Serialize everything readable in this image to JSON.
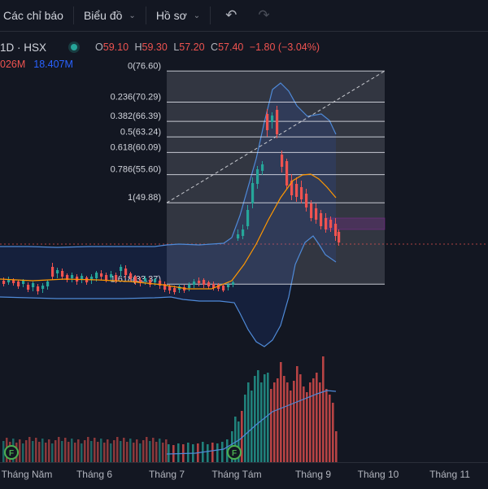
{
  "toolbar": {
    "indicators_label": "Các chỉ báo",
    "chart_label": "Biểu đồ",
    "profile_label": "Hồ sơ",
    "undo_icon": "undo-icon",
    "redo_icon": "redo-icon"
  },
  "legend": {
    "symbol": "1D · HSX",
    "open_key": "O",
    "open": "59.10",
    "high_key": "H",
    "high": "59.30",
    "low_key": "L",
    "low": "57.20",
    "close_key": "C",
    "close": "57.40",
    "change": "−1.80 (−3.04%)",
    "volume_a": "026M",
    "volume_b": "18.407M"
  },
  "colors": {
    "up": "#26a69a",
    "down": "#ef5350",
    "bollinger": "#2962ff",
    "ma": "#ff9800",
    "fib_zone": "#8a8f9c"
  },
  "fib_levels": [
    {
      "label": "0(76.60)",
      "price": 76.6
    },
    {
      "label": "0.236(70.29)",
      "price": 70.29
    },
    {
      "label": "0.382(66.39)",
      "price": 66.39
    },
    {
      "label": "0.5(63.24)",
      "price": 63.24
    },
    {
      "label": "0.618(60.09)",
      "price": 60.09
    },
    {
      "label": "0.786(55.60)",
      "price": 55.6
    },
    {
      "label": "1(49.88)",
      "price": 49.88
    },
    {
      "label": "1.618(33.37)",
      "price": 33.37
    }
  ],
  "xaxis": {
    "labels": [
      "Tháng Năm",
      "Tháng 6",
      "Tháng 7",
      "Tháng Tám",
      "Tháng 9",
      "Tháng 10",
      "Tháng 11"
    ]
  },
  "event_marker_label": "F"
}
